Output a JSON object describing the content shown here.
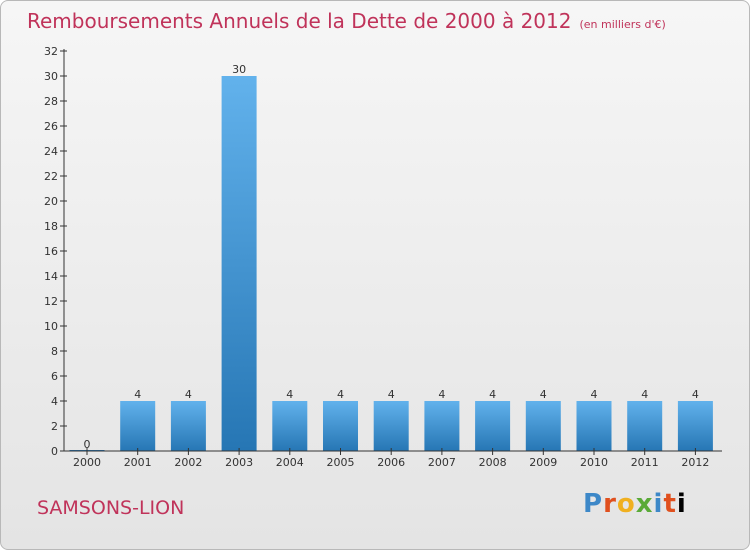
{
  "header": {
    "title": "Remboursements Annuels de la Dette de 2000 à 2012",
    "subtitle": "(en milliers d'€)"
  },
  "footer": {
    "commune": "SAMSONS-LION",
    "logo_letters": [
      "P",
      "r",
      "o",
      "x",
      "i",
      "t",
      "i"
    ]
  },
  "colors": {
    "title": "#c0335a",
    "bar_light": "#62b2ec",
    "bar_dark": "#2676b4",
    "background_top": "#f6f6f6",
    "background_bottom": "#e4e4e4"
  },
  "chart_data": {
    "type": "bar",
    "title": "Remboursements Annuels de la Dette de 2000 à 2012",
    "subtitle": "(en milliers d'€)",
    "categories": [
      "2000",
      "2001",
      "2002",
      "2003",
      "2004",
      "2005",
      "2006",
      "2007",
      "2008",
      "2009",
      "2010",
      "2011",
      "2012"
    ],
    "values": [
      0,
      4,
      4,
      30,
      4,
      4,
      4,
      4,
      4,
      4,
      4,
      4,
      4
    ],
    "data_labels": [
      "0",
      "4",
      "4",
      "30",
      "4",
      "4",
      "4",
      "4",
      "4",
      "4",
      "4",
      "4",
      "4"
    ],
    "yticks": [
      0,
      2,
      4,
      6,
      8,
      10,
      12,
      14,
      16,
      18,
      20,
      22,
      24,
      26,
      28,
      30,
      32
    ],
    "ylim": [
      0,
      32
    ],
    "xlabel": "",
    "ylabel": "",
    "grid": false,
    "legend": "none"
  }
}
